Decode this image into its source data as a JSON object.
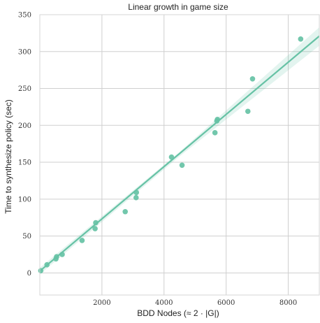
{
  "chart_data": {
    "type": "scatter",
    "title": "Linear growth in game size",
    "xlabel": "BDD Nodes (≈ 2 · |G|)",
    "ylabel": "Time to synthesize policy (sec)",
    "xlim": [
      0,
      9000
    ],
    "ylim": [
      -30,
      350
    ],
    "x_ticks": [
      2000,
      4000,
      6000,
      8000
    ],
    "y_ticks": [
      0,
      50,
      100,
      150,
      200,
      250,
      300,
      350
    ],
    "grid": true,
    "series": [
      {
        "x": [
          30,
          230,
          520,
          540,
          720,
          1360,
          1780,
          1800,
          2750,
          3100,
          3110,
          4240,
          4580,
          5640,
          5700,
          5720,
          6700,
          6850,
          8400
        ],
        "y": [
          3,
          11,
          19,
          22,
          25,
          44,
          60,
          68,
          83,
          102,
          109,
          157,
          146,
          190,
          206,
          208,
          219,
          263,
          317
        ],
        "color": "#66c2a5"
      }
    ],
    "fit_line": {
      "x": [
        0,
        9000
      ],
      "y": [
        2.5,
        321
      ],
      "color": "#66c2a5",
      "ci_band": [
        [
          0,
          -2,
          7
        ],
        [
          4500,
          158,
          164
        ],
        [
          9000,
          308,
          333
        ]
      ]
    }
  }
}
